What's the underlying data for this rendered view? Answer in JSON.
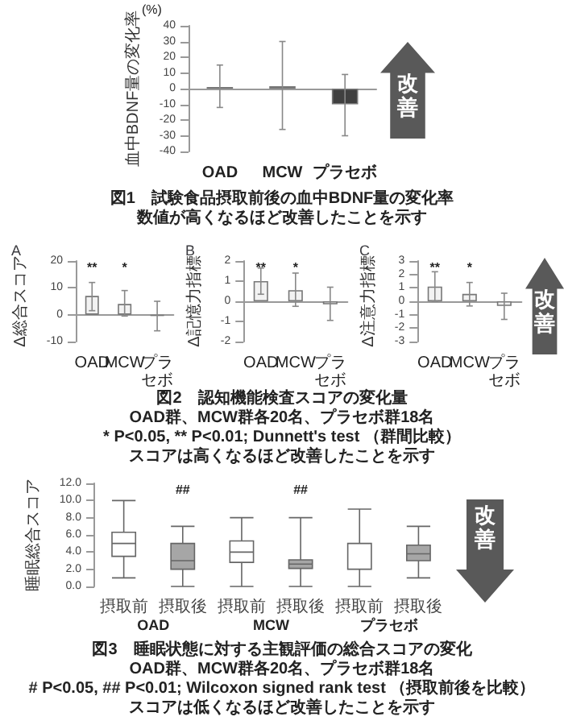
{
  "chart_data": [
    {
      "type": "bar",
      "ylabel": "血中BDNF量の変化率",
      "categories": [
        "OAD",
        "MCW",
        "プラセボ"
      ],
      "values": [
        1,
        1.5,
        -10
      ],
      "color": "#404040",
      "errors": [
        [
          -12,
          15
        ],
        [
          -26,
          30
        ],
        [
          -30,
          9
        ]
      ],
      "ylim": [
        -40,
        40
      ],
      "yticks": [
        -40,
        -30,
        -20,
        -10,
        0,
        10,
        20,
        30,
        40
      ],
      "annotations": [
        "(%)",
        "改善"
      ]
    },
    {
      "type": "other",
      "title": "図1　試験食品摂取前後の血中BDNF量の変化率",
      "annotations": [
        "数値が高くなるほど改善したことを示す"
      ]
    },
    {
      "type": "bar",
      "title": "A",
      "ylabel": "Δ総合スコア",
      "categories": [
        "OAD",
        "MCW",
        "プラセボ"
      ],
      "values": [
        7,
        4,
        -0.5
      ],
      "color": "#f2f2f2",
      "errors": [
        [
          1.5,
          12
        ],
        [
          -0.5,
          9
        ],
        [
          -6,
          5
        ]
      ],
      "ylim": [
        -10,
        20
      ],
      "yticks": [
        -10,
        0,
        10,
        20
      ],
      "annotations": [
        "**",
        "*"
      ]
    },
    {
      "type": "bar",
      "title": "B",
      "ylabel": "Δ記憶力指標",
      "categories": [
        "OAD",
        "MCW",
        "プラセボ"
      ],
      "values": [
        1.0,
        0.55,
        -0.15
      ],
      "color": "#f2f2f2",
      "errors": [
        [
          0.35,
          1.65
        ],
        [
          -0.25,
          1.4
        ],
        [
          -0.95,
          0.7
        ]
      ],
      "ylim": [
        -2,
        2
      ],
      "yticks": [
        -2,
        -1,
        0,
        1,
        2
      ],
      "annotations": [
        "**",
        "*"
      ]
    },
    {
      "type": "bar",
      "title": "C",
      "ylabel": "Δ注意力指標",
      "categories": [
        "OAD",
        "MCW",
        "プラセボ"
      ],
      "values": [
        1.1,
        0.55,
        -0.35
      ],
      "color": "#f2f2f2",
      "errors": [
        [
          0,
          2.2
        ],
        [
          -0.35,
          1.4
        ],
        [
          -1.35,
          0.6
        ]
      ],
      "ylim": [
        -3,
        3
      ],
      "yticks": [
        -3,
        -2,
        -1,
        0,
        1,
        2,
        3
      ],
      "annotations": [
        "**",
        "*",
        "改善"
      ]
    },
    {
      "type": "other",
      "title": "図2　認知機能検査スコアの変化量",
      "annotations": [
        "OAD群、MCW群各20名、プラセボ群18名",
        "* P<0.05, ** P<0.01; Dunnett's test （群間比較）",
        "スコアは高くなるほど改善したことを示す"
      ]
    },
    {
      "type": "box",
      "ylabel": "睡眠総合スコア",
      "categories": [
        "摂取前",
        "摂取後",
        "摂取前",
        "摂取後",
        "摂取前",
        "摂取後"
      ],
      "colors": [
        "#ffffff",
        "#a6a6a6",
        "#ffffff",
        "#a6a6a6",
        "#ffffff",
        "#a6a6a6"
      ],
      "boxes": [
        {
          "low": 1,
          "q1": 3.5,
          "median": 5,
          "q3": 6.3,
          "high": 10
        },
        {
          "low": 0,
          "q1": 2,
          "median": 3,
          "q3": 5,
          "high": 7
        },
        {
          "low": 0,
          "q1": 2.8,
          "median": 4,
          "q3": 5.3,
          "high": 8
        },
        {
          "low": 0,
          "q1": 2.1,
          "median": 2.6,
          "q3": 3.1,
          "high": 8
        },
        {
          "low": 0,
          "q1": 2,
          "median": 2,
          "q3": 5,
          "high": 9
        },
        {
          "low": 1,
          "q1": 3,
          "median": 3.8,
          "q3": 4.8,
          "high": 7
        }
      ],
      "ylim": [
        0,
        12
      ],
      "yticks": [
        {
          "value": 0,
          "label": "0.0"
        },
        {
          "value": 2,
          "label": "2.0"
        },
        {
          "value": 4,
          "label": "4.0"
        },
        {
          "value": 6,
          "label": "6.0"
        },
        {
          "value": 8,
          "label": "8.0"
        },
        {
          "value": 10,
          "label": "10.0"
        },
        {
          "value": 12,
          "label": "12.0"
        }
      ],
      "annotations": [
        "##",
        "##",
        "OAD",
        "MCW",
        "プラセボ",
        "改善"
      ]
    },
    {
      "type": "other",
      "title": "図3　睡眠状態に対する主観評価の総合スコアの変化",
      "annotations": [
        "OAD群、MCW群各20名、プラセボ群18名",
        "# P<0.05, ## P<0.01; Wilcoxon signed rank test （摂取前後を比較）",
        "スコアは低くなるほど改善したことを示す"
      ]
    }
  ]
}
